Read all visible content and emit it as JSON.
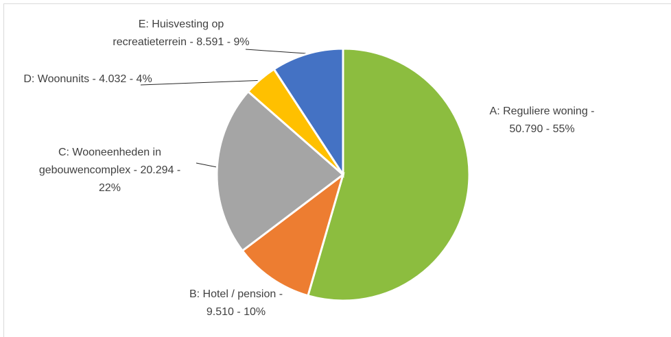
{
  "chart_data": {
    "type": "pie",
    "categories": [
      "A: Reguliere woning - 50.790 - 55%",
      "B: Hotel / pension - 9.510 - 10%",
      "C: Wooneenheden in gebouwencomplex - 20.294 - 22%",
      "D: Woonunits - 4.032 - 4%",
      "E: Huisvesting op recreatieterrein - 8.591 - 9%"
    ],
    "values": [
      50790,
      9510,
      20294,
      4032,
      8591
    ],
    "colors": [
      "#8cbd3f",
      "#ed7d31",
      "#a5a5a5",
      "#ffc000",
      "#4472c4"
    ]
  }
}
